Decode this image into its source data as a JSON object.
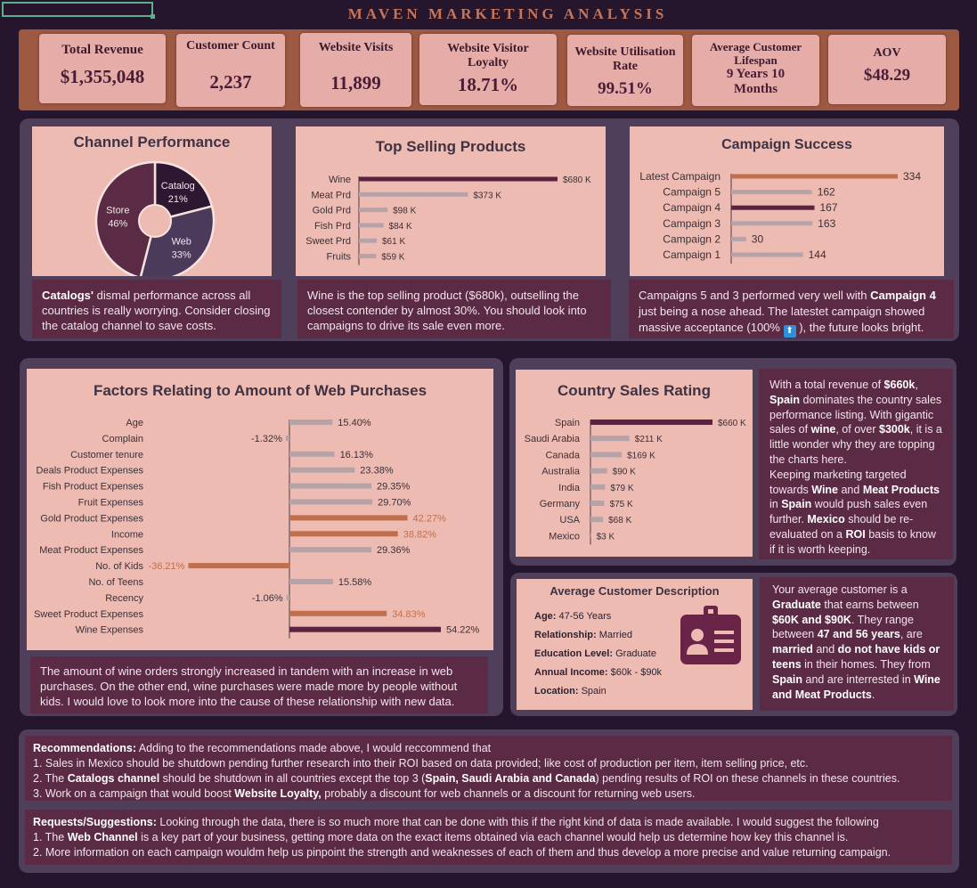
{
  "title": "MAVEN MARKETING ANALYSIS",
  "kpis": [
    {
      "label": "Total Revenue",
      "value": "$1,355,048"
    },
    {
      "label": "Customer Count",
      "value": "2,237"
    },
    {
      "label": "Website Visits",
      "value": "11,899"
    },
    {
      "label": "Website Visitor Loyalty",
      "value": "18.71%"
    },
    {
      "label": "Website Utilisation Rate",
      "value": "99.51%"
    },
    {
      "label": "Average Customer Lifespan",
      "value": "9 Years 10 Months"
    },
    {
      "label": "AOV",
      "value": "$48.29"
    }
  ],
  "colors": {
    "background": "#25162e",
    "panel": "#503f5a",
    "card": "#eebbb2",
    "bar_dark": "#5b2340",
    "bar_grey": "#b6a3a8",
    "bar_accent": "#bf6f4b",
    "kpi_bar": "#9e5942"
  },
  "notes": {
    "channel": [
      "Catalogs'",
      " dismal performance across all countries is really worrying. Consider closing the catalog channel to save costs."
    ],
    "products": "Wine is the top selling product ($680k), outselling the closest contender by almost 30%. You should look into campaigns to drive its sale even more.",
    "campaign": [
      "Campaigns 5 and 3 performed very well with ",
      "Campaign 4",
      " just being a nose ahead. The latestet campaign showed massive acceptance (100% ",
      "⬆",
      " ), the future looks bright."
    ],
    "factors": "The amount of wine orders strongly increased in tandem with an increase in web purchases. On the other end, wine purchases were made more by people without kids. I would love to look more into the cause of these relationship with new data.",
    "country": [
      "With a total revenue of ",
      "$660k",
      ", ",
      "Spain",
      " dominates the country sales performance listing. With gigantic sales of ",
      "wine",
      ", of over ",
      "$300k",
      ", it is a little wonder why they are topping the charts here.",
      "Keeping marketing targeted towards ",
      "Wine",
      " and ",
      "Meat Products",
      " in ",
      "Spain",
      " would push sales even further. ",
      "Mexico",
      " should be re-evaluated on a ",
      "ROI",
      " basis to know if it is worth keeping."
    ],
    "customer": [
      "Your average customer is a ",
      "Graduate",
      " that earns between ",
      "$60K and $90K",
      ". They range between ",
      "47 and 56 years",
      ", are ",
      "married",
      " and ",
      "do not have kids or teens",
      " in their homes. They from ",
      "Spain",
      " and are interrested in ",
      "Wine and Meat Products",
      "."
    ]
  },
  "customer_card": {
    "title": "Average Customer Description",
    "rows": [
      {
        "label": "Age:",
        "value": "47-56 Years"
      },
      {
        "label": "Relationship:",
        "value": "Married"
      },
      {
        "label": "Education Level:",
        "value": "Graduate"
      },
      {
        "label": "Annual Income:",
        "value": "$60k - $90k"
      },
      {
        "label": "Location:",
        "value": "Spain"
      }
    ],
    "icon": "id-badge-icon"
  },
  "recommendations": {
    "head": "Recommendations:",
    "intro": " Adding to  the recommendations made above, I would reccommend that",
    "line1": "1. Sales in Mexico should be shutdown pending further research into their ROI based on data provided; like cost of production per item, item selling price, etc.",
    "line2": [
      "2. The ",
      "Catalogs channel",
      "  should be shutdown in all countries except the top 3 (",
      "Spain, Saudi Arabia and Canada",
      ") pending results of ROI on these channels in these countries."
    ],
    "line3": [
      "3. Work on a campaign that would boost ",
      "Website Loyalty,",
      " probably a discount for web channels or a discount for returning web users."
    ]
  },
  "requests": {
    "head": "Requests/Suggestions:",
    "intro": " Looking through the data, there is so much more that can be done with this if the right kind of data is made available. I would suggest the following",
    "line1": [
      "1. The ",
      "Web Channel",
      " is a key part of your business, getting more data on the exact items obtained via each channel would help us determine how key this channel is."
    ],
    "line2": "2. More information on each campaign wouldm help us pinpoint the strength and weaknesses of each of them and thus develop a more precise and value returning campaign."
  },
  "chart_data": [
    {
      "id": "channel",
      "type": "pie",
      "title": "Channel Performance",
      "categories": [
        "Catalog",
        "Web",
        "Store"
      ],
      "values": [
        21,
        33,
        46
      ],
      "labels": [
        "21%",
        "33%",
        "46%"
      ],
      "colors": [
        "#2e1730",
        "#4b3a59",
        "#5b2a44"
      ]
    },
    {
      "id": "products",
      "type": "bar",
      "title": "Top Selling Products",
      "categories": [
        "Wine",
        "Meat Prd",
        "Gold Prd",
        "Fish Prd",
        "Sweet Prd",
        "Fruits"
      ],
      "values": [
        680,
        373,
        98,
        84,
        61,
        59
      ],
      "labels": [
        "$680  K",
        "$373  K",
        "$98  K",
        "$84  K",
        "$61  K",
        "$59  K"
      ],
      "highlight": [
        0
      ]
    },
    {
      "id": "campaign",
      "type": "bar",
      "title": "Campaign Success",
      "categories": [
        "Latest Campaign",
        "Campaign 5",
        "Campaign 4",
        "Campaign 3",
        "Campaign 2",
        "Campaign 1"
      ],
      "values": [
        334,
        162,
        167,
        163,
        30,
        144
      ],
      "labels": [
        "334",
        "162",
        "167",
        "163",
        "30",
        "144"
      ]
    },
    {
      "id": "factors",
      "type": "bar",
      "title": "Factors Relating to Amount of Web Purchases",
      "categories": [
        "Age",
        "Complain",
        "Customer tenure",
        "Deals Product Expenses",
        "Fish Product Expenses",
        "Fruit Expenses",
        "Gold Product Expenses",
        "Income",
        "Meat Product Expenses",
        "No. of Kids",
        "No. of Teens",
        "Recency",
        "Sweet Product Expenses",
        "Wine Expenses"
      ],
      "values": [
        15.4,
        -1.32,
        16.13,
        23.38,
        29.35,
        29.7,
        42.27,
        38.82,
        29.36,
        -36.21,
        15.58,
        -1.06,
        34.83,
        54.22
      ],
      "labels": [
        "15.40%",
        "-1.32%",
        "16.13%",
        "23.38%",
        "29.35%",
        "29.70%",
        "42.27%",
        "38.82%",
        "29.36%",
        "-36.21%",
        "15.58%",
        "-1.06%",
        "34.83%",
        "54.22%"
      ]
    },
    {
      "id": "country",
      "type": "bar",
      "title": "Country Sales Rating",
      "categories": [
        "Spain",
        "Saudi Arabia",
        "Canada",
        "Australia",
        "India",
        "Germany",
        "USA",
        "Mexico"
      ],
      "values": [
        660,
        211,
        169,
        90,
        79,
        75,
        68,
        3
      ],
      "labels": [
        "$660  K",
        "$211  K",
        "$169  K",
        "$90  K",
        "$79  K",
        "$75  K",
        "$68  K",
        "$3  K"
      ],
      "highlight": [
        0
      ]
    }
  ]
}
